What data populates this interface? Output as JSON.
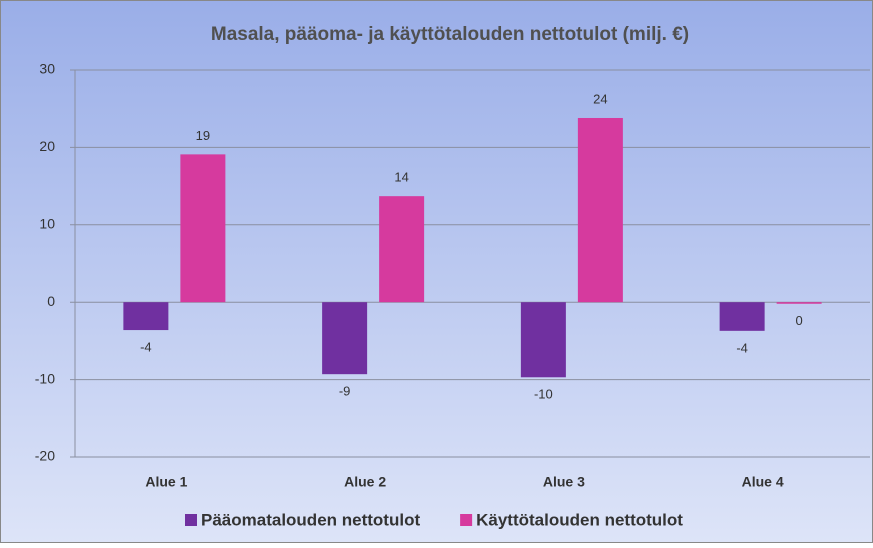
{
  "chart_data": {
    "type": "bar",
    "title": "Masala, pääoma- ja käyttötalouden nettotulot (milj. €)",
    "categories": [
      "Alue 1",
      "Alue 2",
      "Alue 3",
      "Alue 4"
    ],
    "series": [
      {
        "name": "Pääomatalouden nettotulot",
        "color": "#7030a0",
        "values": [
          -3.6,
          -9.3,
          -9.7,
          -3.7
        ],
        "value_labels": [
          "-4",
          "-9",
          "-10",
          "-4"
        ]
      },
      {
        "name": "Käyttötalouden nettotulot",
        "color": "#d63a9e",
        "values": [
          19.1,
          13.7,
          23.8,
          -0.2
        ],
        "value_labels": [
          "19",
          "14",
          "24",
          "0"
        ]
      }
    ],
    "ylim": [
      -20,
      30
    ],
    "yticks": [
      -20,
      -10,
      0,
      10,
      20,
      30
    ],
    "grid": true,
    "legend": "bottom"
  }
}
